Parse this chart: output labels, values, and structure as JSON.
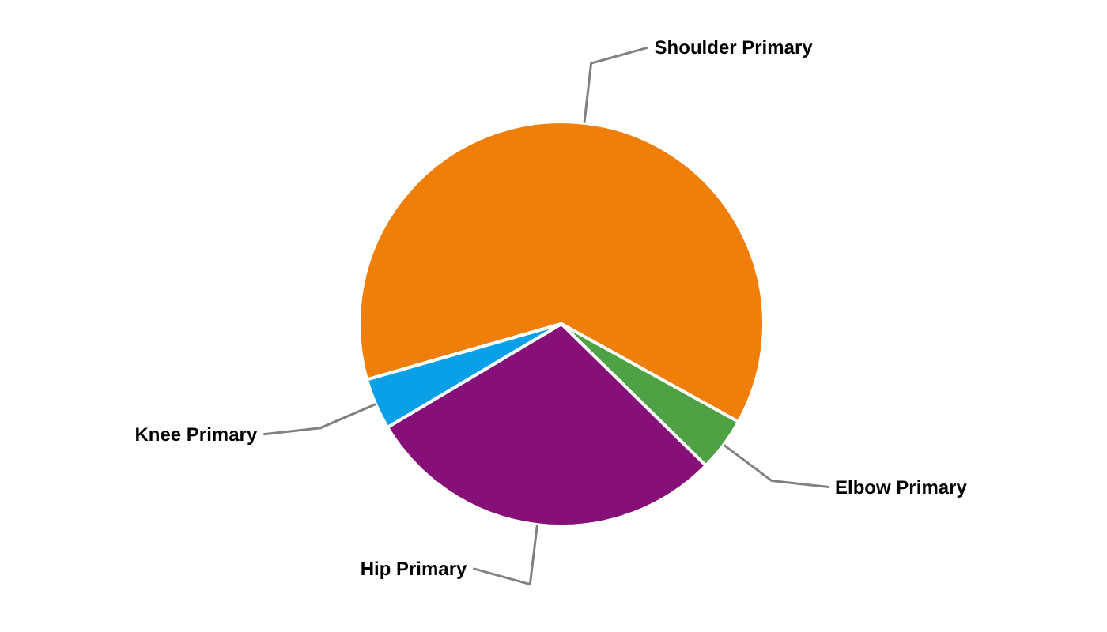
{
  "chart_data": {
    "type": "pie",
    "categories": [
      "Shoulder Primary",
      "Elbow Primary",
      "Hip Primary",
      "Knee Primary"
    ],
    "values": [
      62.5,
      4.3,
      29.1,
      4.1
    ],
    "colors": [
      "#f07f09",
      "#4ea243",
      "#861078",
      "#0aa0e8"
    ]
  }
}
